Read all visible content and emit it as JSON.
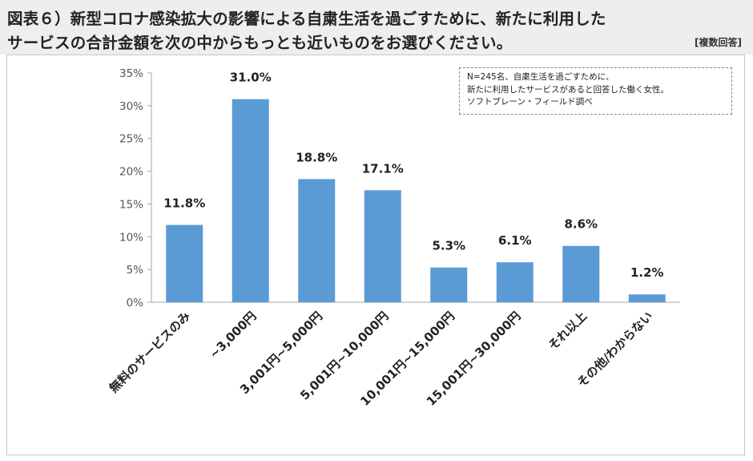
{
  "header": {
    "title_line1": "図表６）新型コロナ感染拡大の影響による自粛生活を過ごすために、新たに利用した",
    "title_line2": "サービスの合計金額を次の中からもっとも近いものをお選びください。",
    "answer_type": "[複数回答]"
  },
  "note": {
    "line1": "N=245名、自粛生活を過ごすために、",
    "line2": "新たに利用したサービスがあると回答した働く女性。",
    "line3": "ソフトブレーン・フィールド調べ"
  },
  "colors": {
    "bar": "#5b9bd5",
    "header_bg": "#eeeeee"
  },
  "chart_data": {
    "type": "bar",
    "title": "",
    "xlabel": "",
    "ylabel": "",
    "categories": [
      "無料のサービスのみ",
      "~3,000円",
      "3,001円~5,000円",
      "5,001円~10,000円",
      "10,001円~15,000円",
      "15,001円~30,000円",
      "それ以上",
      "その他/わからない"
    ],
    "values": [
      11.8,
      31.0,
      18.8,
      17.1,
      5.3,
      6.1,
      8.6,
      1.2
    ],
    "data_labels": [
      "11.8%",
      "31.0%",
      "18.8%",
      "17.1%",
      "5.3%",
      "6.1%",
      "8.6%",
      "1.2%"
    ],
    "yticks": [
      0,
      5,
      10,
      15,
      20,
      25,
      30,
      35
    ],
    "ytick_labels": [
      "0%",
      "5%",
      "10%",
      "15%",
      "20%",
      "25%",
      "30%",
      "35%"
    ],
    "ylim": [
      0,
      35
    ],
    "grid": false,
    "legend": "none"
  }
}
